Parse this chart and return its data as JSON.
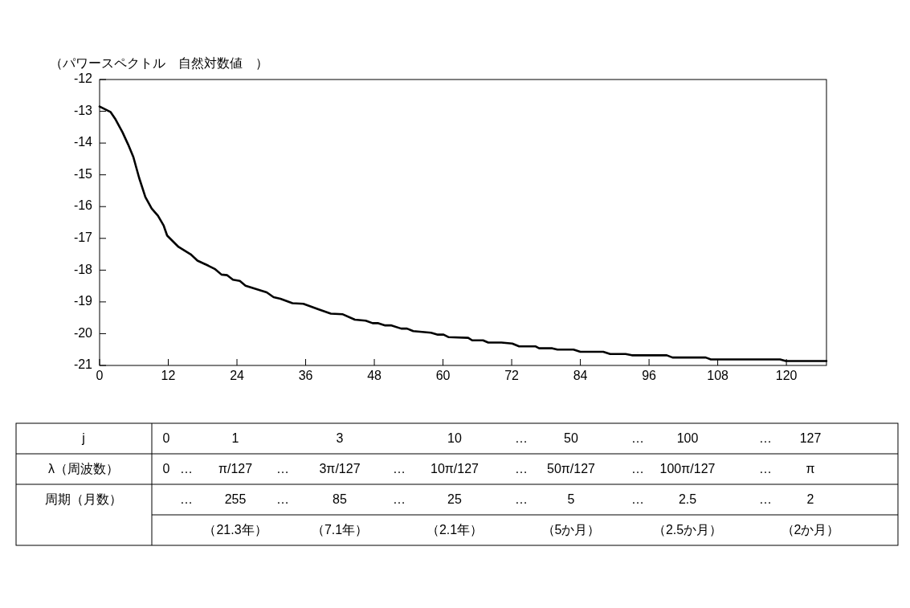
{
  "chart_data": {
    "type": "line",
    "ylabel": "（パワースペクトル　自然対数値　）",
    "xlim": [
      0,
      127
    ],
    "xticks": [
      0,
      12,
      24,
      36,
      48,
      60,
      72,
      84,
      96,
      108,
      120
    ],
    "ylim": [
      -21,
      -12
    ],
    "yticks": [
      -12,
      -13,
      -14,
      -15,
      -16,
      -17,
      -18,
      -19,
      -20,
      -21
    ],
    "grid": false,
    "marker": "none",
    "line_style": "solid",
    "series": [
      {
        "color": "#000000",
        "x": [
          0,
          1.9,
          2.8,
          4.0,
          5.0,
          5.9,
          6.9,
          8.0,
          9.1,
          10.2,
          11.2,
          11.8,
          13.8,
          15.9,
          17.1,
          19.0,
          20.2,
          21.3,
          22.3,
          23.3,
          24.5,
          25.5,
          29.2,
          30.4,
          31.6,
          33.7,
          35.6,
          38.2,
          40.4,
          42.5,
          44.6,
          46.5,
          47.7,
          48.7,
          49.9,
          51.0,
          52.7,
          53.7,
          54.8,
          57.9,
          59.1,
          60.1,
          61.0,
          64.4,
          65.1,
          67.0,
          67.9,
          70.2,
          72.1,
          73.3,
          76.2,
          76.8,
          79.1,
          80.0,
          82.8,
          84.0,
          88.0,
          89.2,
          91.9,
          93.0,
          99.1,
          100.1,
          105.9,
          106.8,
          118.9,
          119.9,
          127
        ],
        "values": [
          -12.85,
          -13.02,
          -13.26,
          -13.66,
          -14.05,
          -14.44,
          -15.09,
          -15.7,
          -16.06,
          -16.29,
          -16.6,
          -16.91,
          -17.27,
          -17.5,
          -17.7,
          -17.86,
          -17.97,
          -18.14,
          -18.16,
          -18.3,
          -18.34,
          -18.49,
          -18.7,
          -18.85,
          -18.9,
          -19.04,
          -19.06,
          -19.23,
          -19.37,
          -19.39,
          -19.56,
          -19.59,
          -19.67,
          -19.67,
          -19.74,
          -19.74,
          -19.84,
          -19.84,
          -19.92,
          -19.97,
          -20.03,
          -20.03,
          -20.11,
          -20.13,
          -20.21,
          -20.21,
          -20.28,
          -20.28,
          -20.31,
          -20.4,
          -20.4,
          -20.46,
          -20.46,
          -20.5,
          -20.5,
          -20.57,
          -20.57,
          -20.64,
          -20.64,
          -20.68,
          -20.68,
          -20.75,
          -20.75,
          -20.81,
          -20.81,
          -20.86,
          -20.86
        ]
      }
    ],
    "annotations": [
      "j",
      "0",
      "1",
      "3",
      "10",
      "…",
      "50",
      "…",
      "100",
      "…",
      "127",
      "λ（周波数）",
      "0",
      "…",
      "π/127",
      "…",
      "3π/127",
      "…",
      "10π/127",
      "…",
      "50π/127",
      "…",
      "100π/127",
      "…",
      "π",
      "周期（月数）",
      "…",
      "255",
      "…",
      "85",
      "…",
      "25",
      "…",
      "5",
      "…",
      "2.5",
      "…",
      "2",
      "（21.3年）",
      "（7.1年）",
      "（2.1年）",
      "（5か月）",
      "（2.5か月）",
      "（2か月）"
    ]
  }
}
